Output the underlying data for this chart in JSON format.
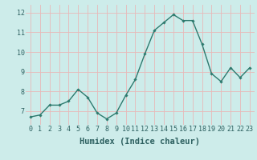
{
  "x": [
    0,
    1,
    2,
    3,
    4,
    5,
    6,
    7,
    8,
    9,
    10,
    11,
    12,
    13,
    14,
    15,
    16,
    17,
    18,
    19,
    20,
    21,
    22,
    23
  ],
  "y": [
    6.7,
    6.8,
    7.3,
    7.3,
    7.5,
    8.1,
    7.7,
    6.9,
    6.6,
    6.9,
    7.8,
    8.6,
    9.9,
    11.1,
    11.5,
    11.9,
    11.6,
    11.6,
    10.4,
    8.9,
    8.5,
    9.2,
    8.7,
    9.2
  ],
  "line_color": "#2d7a6e",
  "marker": "D",
  "marker_size": 1.8,
  "line_width": 1.0,
  "xlabel": "Humidex (Indice chaleur)",
  "xlim": [
    -0.5,
    23.5
  ],
  "ylim": [
    6.3,
    12.4
  ],
  "yticks": [
    7,
    8,
    9,
    10,
    11,
    12
  ],
  "xticks": [
    0,
    1,
    2,
    3,
    4,
    5,
    6,
    7,
    8,
    9,
    10,
    11,
    12,
    13,
    14,
    15,
    16,
    17,
    18,
    19,
    20,
    21,
    22,
    23
  ],
  "bg_color": "#cdecea",
  "grid_color": "#e8b8b8",
  "tick_fontsize": 6,
  "xlabel_fontsize": 7.5
}
